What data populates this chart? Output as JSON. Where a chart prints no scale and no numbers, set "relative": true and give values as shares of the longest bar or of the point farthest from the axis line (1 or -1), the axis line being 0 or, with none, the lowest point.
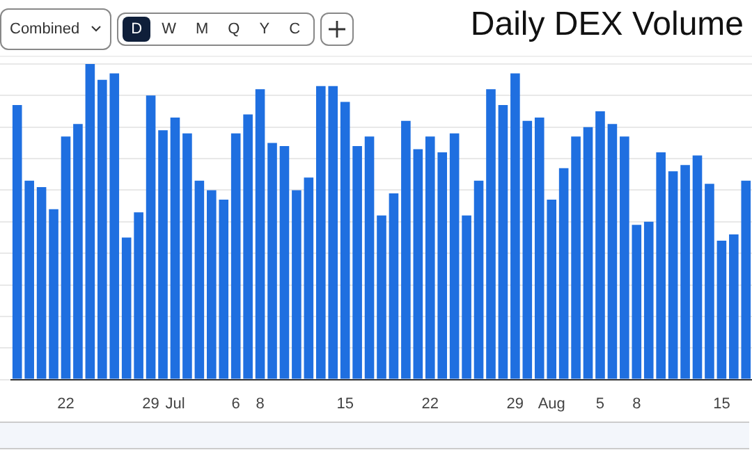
{
  "chart_data": {
    "type": "bar",
    "title": "Daily DEX Volume",
    "annotations": [
      "Combined",
      "D",
      "W",
      "M",
      "Q",
      "Y",
      "C"
    ],
    "categories": [
      null,
      null,
      null,
      null,
      "22",
      null,
      null,
      null,
      null,
      null,
      null,
      "29",
      null,
      "Jul",
      null,
      null,
      null,
      null,
      "6",
      null,
      "8",
      null,
      null,
      null,
      null,
      null,
      null,
      "15",
      null,
      null,
      null,
      null,
      null,
      null,
      "22",
      null,
      null,
      null,
      null,
      null,
      null,
      "29",
      null,
      null,
      "Aug",
      null,
      null,
      null,
      "5",
      null,
      null,
      "8",
      null,
      null,
      null,
      null,
      null,
      null,
      "15",
      null,
      null
    ],
    "values": [
      0.87,
      0.63,
      0.61,
      0.54,
      0.77,
      0.81,
      1,
      0.95,
      0.97,
      0.45,
      0.53,
      0.9,
      0.79,
      0.83,
      0.78,
      0.63,
      0.6,
      0.57,
      0.78,
      0.84,
      0.92,
      0.75,
      0.74,
      0.6,
      0.64,
      0.93,
      0.93,
      0.88,
      0.74,
      0.77,
      0.52,
      0.59,
      0.82,
      0.73,
      0.77,
      0.72,
      0.78,
      0.52,
      0.63,
      0.92,
      0.87,
      0.97,
      0.82,
      0.83,
      0.57,
      0.67,
      0.77,
      0.8,
      0.85,
      0.81,
      0.77,
      0.49,
      0.5,
      0.72,
      0.66,
      0.68,
      0.71,
      0.62,
      0.44,
      0.46,
      0.63
    ],
    "color": "#1f6fe0",
    "relative": true,
    "grid": "y"
  }
}
